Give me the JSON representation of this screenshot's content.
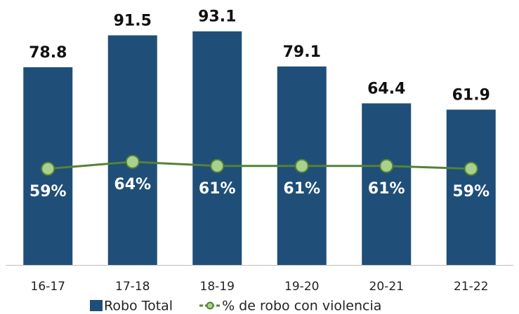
{
  "chart_data": {
    "type": "bar_line",
    "categories": [
      "16-17",
      "17-18",
      "18-19",
      "19-20",
      "20-21",
      "21-22"
    ],
    "series": [
      {
        "name": "Robo Total",
        "type": "bar",
        "color": "#1f4e79",
        "values": [
          78.8,
          91.5,
          93.1,
          79.1,
          64.4,
          61.9
        ]
      },
      {
        "name": "% de robo con violencia",
        "type": "line",
        "axis": "y2",
        "color": "#548235",
        "values": [
          59,
          64,
          61,
          61,
          61,
          59
        ],
        "value_labels": [
          "59%",
          "64%",
          "61%",
          "61%",
          "61%",
          "59%"
        ]
      }
    ],
    "ylim": [
      0,
      100
    ],
    "y2lim": [
      -10,
      170
    ],
    "grid": false,
    "legend": "bottom"
  }
}
